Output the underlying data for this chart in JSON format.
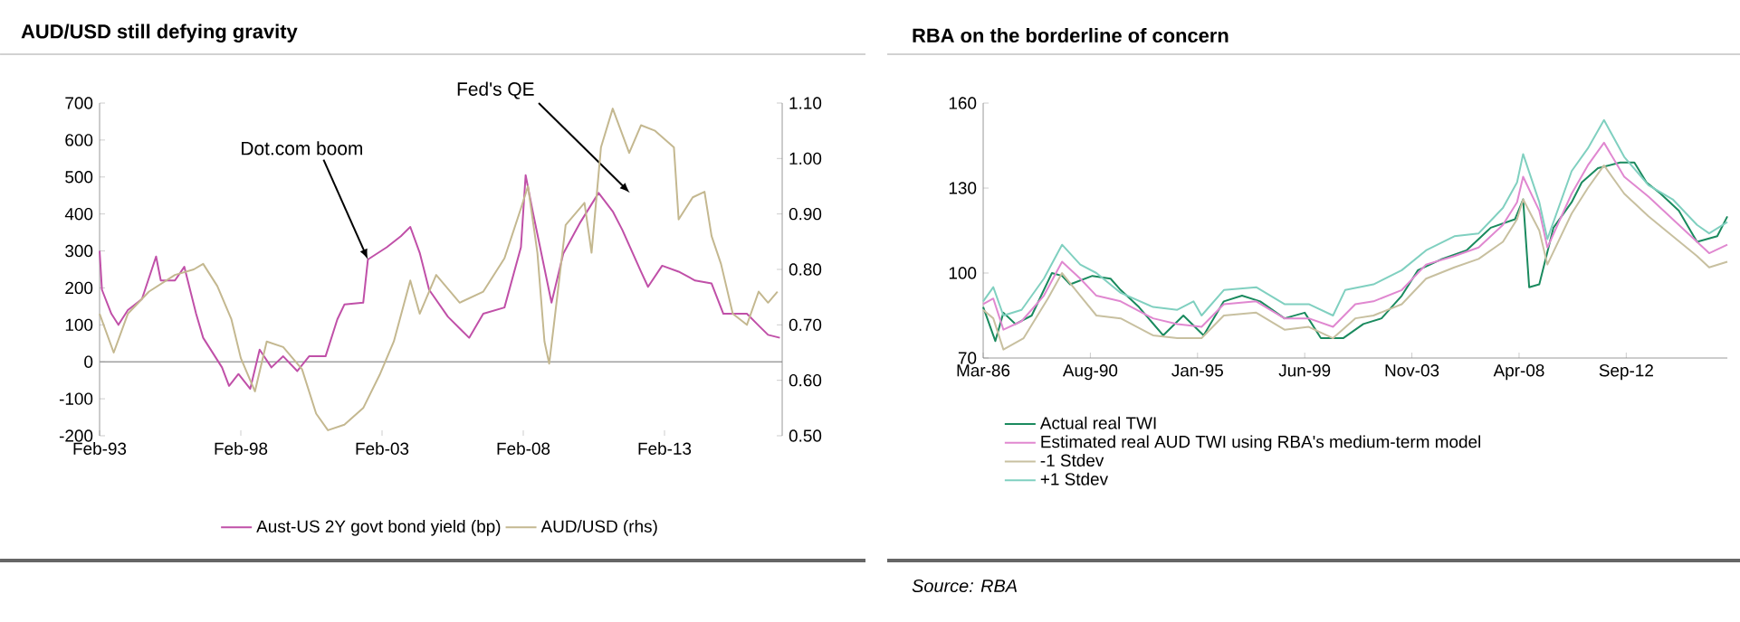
{
  "chart_data": [
    {
      "type": "line",
      "title": "AUD/USD still defying gravity",
      "series": [
        {
          "name": "Aust-US 2Y govt bond yield (bp)",
          "color": "#c050a8",
          "x": [
            "1993-02",
            "1993-03",
            "1993-07",
            "1993-10",
            "1994-02",
            "1994-08",
            "1995-02",
            "1995-04",
            "1995-10",
            "1996-02",
            "1996-07",
            "1996-10",
            "1997-06",
            "1997-09",
            "1998-01",
            "1998-06",
            "1998-10",
            "1999-03",
            "1999-08",
            "2000-02",
            "2000-07",
            "2001-02",
            "2001-07",
            "2001-10",
            "2002-06",
            "2002-08",
            "2003-04",
            "2003-10",
            "2004-02",
            "2004-06",
            "2004-10",
            "2005-06",
            "2006-03",
            "2006-09",
            "2007-06",
            "2008-01",
            "2008-03",
            "2008-06",
            "2009-02",
            "2009-07",
            "2010-02",
            "2010-10",
            "2011-04",
            "2011-08",
            "2012-04",
            "2012-07",
            "2013-01",
            "2013-08",
            "2014-03",
            "2014-10",
            "2015-03",
            "2016-01",
            "2016-06",
            "2016-10",
            "2017-03"
          ],
          "values": [
            300,
            195,
            130,
            100,
            140,
            170,
            285,
            220,
            220,
            257,
            130,
            65,
            -15,
            -65,
            -33,
            -73,
            33,
            -15,
            15,
            -25,
            15,
            15,
            115,
            155,
            160,
            277,
            310,
            340,
            365,
            295,
            195,
            122,
            65,
            130,
            147,
            310,
            505,
            407,
            160,
            293,
            375,
            457,
            407,
            358,
            244,
            203,
            260,
            244,
            220,
            212,
            130,
            130,
            98,
            73,
            65
          ]
        },
        {
          "name": "AUD/USD (rhs)",
          "color": "#c4b890",
          "axis": "y2",
          "x": [
            "1993-02",
            "1993-08",
            "1994-02",
            "1994-11",
            "1995-10",
            "1996-06",
            "1996-10",
            "1997-04",
            "1997-10",
            "1998-02",
            "1998-08",
            "1999-01",
            "1999-08",
            "2000-04",
            "2000-10",
            "2001-03",
            "2001-10",
            "2002-06",
            "2003-01",
            "2003-07",
            "2004-02",
            "2004-06",
            "2005-01",
            "2005-11",
            "2006-09",
            "2007-06",
            "2008-01",
            "2008-04",
            "2008-08",
            "2008-11",
            "2009-01",
            "2009-03",
            "2009-08",
            "2010-04",
            "2010-07",
            "2010-11",
            "2011-04",
            "2011-11",
            "2012-04",
            "2012-10",
            "2013-06",
            "2013-08",
            "2014-02",
            "2014-07",
            "2014-10",
            "2015-02",
            "2015-07",
            "2016-01",
            "2016-06",
            "2016-10",
            "2017-02"
          ],
          "values": [
            0.72,
            0.65,
            0.72,
            0.76,
            0.79,
            0.8,
            0.81,
            0.77,
            0.71,
            0.64,
            0.58,
            0.67,
            0.66,
            0.62,
            0.54,
            0.51,
            0.52,
            0.55,
            0.61,
            0.67,
            0.78,
            0.72,
            0.79,
            0.74,
            0.76,
            0.82,
            0.91,
            0.95,
            0.83,
            0.67,
            0.63,
            0.7,
            0.88,
            0.92,
            0.83,
            1.02,
            1.09,
            1.01,
            1.06,
            1.05,
            1.02,
            0.89,
            0.93,
            0.94,
            0.86,
            0.81,
            0.72,
            0.7,
            0.76,
            0.74,
            0.76
          ]
        }
      ],
      "xlim": [
        "1993-02",
        "2017-04"
      ],
      "xticks": [
        {
          "value": "1993-02",
          "label": "Feb-93"
        },
        {
          "value": "1998-02",
          "label": "Feb-98"
        },
        {
          "value": "2003-02",
          "label": "Feb-03"
        },
        {
          "value": "2008-02",
          "label": "Feb-08"
        },
        {
          "value": "2013-02",
          "label": "Feb-13"
        }
      ],
      "ylim": [
        -200,
        700
      ],
      "yticks": [
        -200,
        -100,
        0,
        100,
        200,
        300,
        400,
        500,
        600,
        700
      ],
      "y2lim": [
        0.5,
        1.1
      ],
      "y2ticks": [
        {
          "value": 0.5,
          "label": "0.50"
        },
        {
          "value": 0.6,
          "label": "0.60"
        },
        {
          "value": 0.7,
          "label": "0.70"
        },
        {
          "value": 0.8,
          "label": "0.80"
        },
        {
          "value": 0.9,
          "label": "0.90"
        },
        {
          "value": 1.0,
          "label": "1.00"
        },
        {
          "value": 1.1,
          "label": "1.10"
        }
      ],
      "ref_lines": [
        {
          "axis": "y",
          "value": 0,
          "color": "#a0a0a0"
        }
      ],
      "annotations": [
        {
          "text": "Dot.com boom",
          "x": "2002-08",
          "y": 277
        },
        "Fed's QE"
      ],
      "legend": "bottom"
    },
    {
      "type": "line",
      "title": "RBA on the borderline of concern",
      "series": [
        {
          "name": "Actual real TWI",
          "color": "#1a8a5e",
          "x": [
            "1986-03",
            "1986-09",
            "1987-01",
            "1987-07",
            "1988-03",
            "1989-01",
            "1989-06",
            "1989-10",
            "1990-09",
            "1991-06",
            "1991-11",
            "1992-08",
            "1993-08",
            "1994-06",
            "1995-04",
            "1996-02",
            "1996-11",
            "1997-08",
            "1998-08",
            "1999-06",
            "2000-02",
            "2001-01",
            "2001-11",
            "2002-08",
            "2003-06",
            "2004-02",
            "2005-02",
            "2006-02",
            "2007-02",
            "2008-02",
            "2008-06",
            "2008-09",
            "2009-02",
            "2009-09",
            "2010-06",
            "2010-11",
            "2011-07",
            "2012-06",
            "2013-01",
            "2013-07",
            "2014-02",
            "2014-11",
            "2015-08",
            "2016-06",
            "2016-11"
          ],
          "values": [
            88,
            76,
            86,
            82,
            85,
            100,
            99,
            96,
            99,
            98,
            94,
            88,
            78,
            85,
            78,
            90,
            92,
            90,
            84,
            86,
            77,
            77,
            82,
            84,
            92,
            101,
            105,
            108,
            116,
            119,
            126,
            95,
            96,
            116,
            125,
            132,
            137,
            139,
            139,
            132,
            128,
            122,
            111,
            113,
            120
          ]
        },
        {
          "name": "Estimated real AUD TWI using RBA's medium-term model",
          "color": "#e088d0",
          "x": [
            "1986-03",
            "1986-08",
            "1987-01",
            "1987-10",
            "1988-09",
            "1989-06",
            "1990-03",
            "1990-11",
            "1991-11",
            "1993-03",
            "1994-03",
            "1995-03",
            "1996-02",
            "1997-06",
            "1998-08",
            "1999-08",
            "2000-08",
            "2001-07",
            "2002-04",
            "2003-06",
            "2004-06",
            "2005-08",
            "2006-08",
            "2007-08",
            "2008-03",
            "2008-06",
            "2009-02",
            "2009-06",
            "2010-06",
            "2011-02",
            "2011-10",
            "2012-08",
            "2013-08",
            "2014-08",
            "2015-08",
            "2016-02",
            "2016-11"
          ],
          "values": [
            89,
            91,
            80,
            83,
            92,
            104,
            98,
            92,
            90,
            84,
            82,
            81,
            89,
            90,
            84,
            84,
            81,
            89,
            90,
            94,
            103,
            106,
            109,
            117,
            125,
            134,
            122,
            109,
            128,
            138,
            146,
            134,
            127,
            119,
            111,
            107,
            110
          ]
        },
        {
          "name": "-1 Stdev",
          "color": "#c8c0a0",
          "x": [
            "1986-03",
            "1986-08",
            "1987-01",
            "1987-11",
            "1988-11",
            "1989-06",
            "1990-03",
            "1990-11",
            "1991-11",
            "1993-03",
            "1994-03",
            "1995-03",
            "1996-02",
            "1997-06",
            "1998-08",
            "1999-08",
            "2000-08",
            "2001-07",
            "2002-04",
            "2003-06",
            "2004-06",
            "2005-08",
            "2006-08",
            "2007-08",
            "2008-03",
            "2008-06",
            "2009-02",
            "2009-06",
            "2010-06",
            "2011-02",
            "2011-10",
            "2012-08",
            "2013-08",
            "2014-08",
            "2015-08",
            "2016-02",
            "2016-11"
          ],
          "values": [
            87,
            84,
            73,
            77,
            91,
            100,
            92,
            85,
            84,
            78,
            77,
            77,
            85,
            86,
            80,
            81,
            77,
            84,
            85,
            89,
            98,
            102,
            105,
            111,
            119,
            126,
            115,
            103,
            121,
            130,
            138,
            128,
            120,
            113,
            106,
            102,
            104
          ]
        },
        {
          "name": "+1 Stdev",
          "color": "#80d0c0",
          "x": [
            "1986-03",
            "1986-08",
            "1987-01",
            "1987-10",
            "1988-09",
            "1989-06",
            "1990-03",
            "1990-11",
            "1991-11",
            "1993-03",
            "1994-03",
            "1994-11",
            "1995-03",
            "1996-02",
            "1997-06",
            "1998-08",
            "1999-08",
            "2000-08",
            "2001-02",
            "2002-04",
            "2003-06",
            "2004-06",
            "2005-08",
            "2006-08",
            "2007-08",
            "2008-03",
            "2008-06",
            "2009-02",
            "2009-06",
            "2010-06",
            "2011-02",
            "2011-10",
            "2012-08",
            "2013-08",
            "2014-08",
            "2015-08",
            "2016-02",
            "2016-11"
          ],
          "values": [
            90,
            95,
            85,
            87,
            98,
            110,
            103,
            100,
            93,
            88,
            87,
            90,
            85,
            94,
            95,
            89,
            89,
            85,
            94,
            96,
            101,
            108,
            113,
            114,
            123,
            132,
            142,
            125,
            112,
            136,
            144,
            154,
            141,
            131,
            126,
            117,
            114,
            118
          ]
        }
      ],
      "xlim": [
        "1986-03",
        "2016-11"
      ],
      "xticks": [
        {
          "value": "1986-03",
          "label": "Mar-86"
        },
        {
          "value": "1990-08",
          "label": "Aug-90"
        },
        {
          "value": "1995-01",
          "label": "Jan-95"
        },
        {
          "value": "1999-06",
          "label": "Jun-99"
        },
        {
          "value": "2003-11",
          "label": "Nov-03"
        },
        {
          "value": "2008-04",
          "label": "Apr-08"
        },
        {
          "value": "2012-09",
          "label": "Sep-12"
        }
      ],
      "ylim": [
        70,
        160
      ],
      "yticks": [
        70,
        100,
        130,
        160
      ],
      "annotations": [
        "Source: RBA"
      ],
      "legend": "bottom left"
    }
  ]
}
